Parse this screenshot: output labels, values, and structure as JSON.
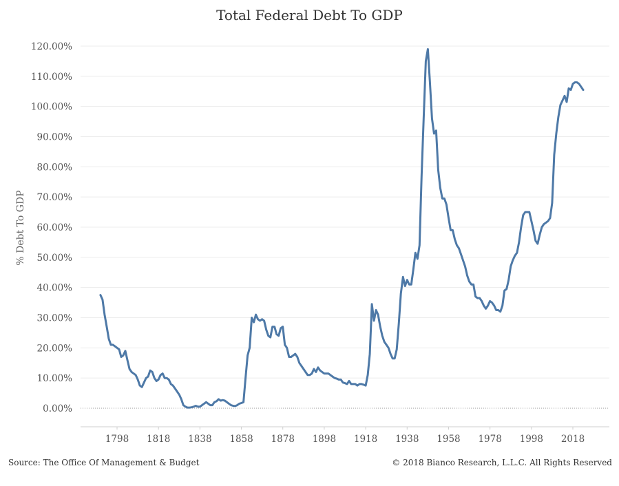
{
  "chart_data": {
    "type": "line",
    "title": "Total Federal Debt To GDP",
    "xlabel": "",
    "ylabel": "% Debt To GDP",
    "ylim": [
      0,
      125
    ],
    "xlim": [
      1783,
      2032
    ],
    "x_ticks": [
      "1798",
      "1818",
      "1838",
      "1858",
      "1878",
      "1898",
      "1918",
      "1938",
      "1958",
      "1978",
      "1998",
      "2018"
    ],
    "y_ticks": [
      "0.00%",
      "10.00%",
      "20.00%",
      "30.00%",
      "40.00%",
      "50.00%",
      "60.00%",
      "70.00%",
      "80.00%",
      "90.00%",
      "100.00%",
      "110.00%",
      "120.00%"
    ],
    "grid": "horizontal",
    "line_color": "#4e79a7",
    "series": [
      {
        "x": [
          1790,
          1791,
          1792,
          1793,
          1794,
          1795,
          1796,
          1797,
          1798,
          1799,
          1800,
          1801,
          1802,
          1803,
          1804,
          1805,
          1806,
          1807,
          1808,
          1809,
          1810,
          1811,
          1812,
          1813,
          1814,
          1815,
          1816,
          1817,
          1818,
          1819,
          1820,
          1821,
          1822,
          1823,
          1824,
          1825,
          1826,
          1827,
          1828,
          1829,
          1830,
          1831,
          1832,
          1833,
          1834,
          1835,
          1836,
          1837,
          1838,
          1839,
          1840,
          1841,
          1842,
          1843,
          1844,
          1845,
          1846,
          1847,
          1848,
          1849,
          1850,
          1851,
          1852,
          1853,
          1854,
          1855,
          1856,
          1857,
          1858,
          1859,
          1860,
          1861,
          1862,
          1863,
          1864,
          1865,
          1866,
          1867,
          1868,
          1869,
          1870,
          1871,
          1872,
          1873,
          1874,
          1875,
          1876,
          1877,
          1878,
          1879,
          1880,
          1881,
          1882,
          1883,
          1884,
          1885,
          1886,
          1887,
          1888,
          1889,
          1890,
          1891,
          1892,
          1893,
          1894,
          1895,
          1896,
          1897,
          1898,
          1899,
          1900,
          1901,
          1902,
          1903,
          1904,
          1905,
          1906,
          1907,
          1908,
          1909,
          1910,
          1911,
          1912,
          1913,
          1914,
          1915,
          1916,
          1917,
          1918,
          1919,
          1920,
          1921,
          1922,
          1923,
          1924,
          1925,
          1926,
          1927,
          1928,
          1929,
          1930,
          1931,
          1932,
          1933,
          1934,
          1935,
          1936,
          1937,
          1938,
          1939,
          1940,
          1941,
          1942,
          1943,
          1944,
          1945,
          1946,
          1947,
          1948,
          1949,
          1950,
          1951,
          1952,
          1953,
          1954,
          1955,
          1956,
          1957,
          1958,
          1959,
          1960,
          1961,
          1962,
          1963,
          1964,
          1965,
          1966,
          1967,
          1968,
          1969,
          1970,
          1971,
          1972,
          1973,
          1974,
          1975,
          1976,
          1977,
          1978,
          1979,
          1980,
          1981,
          1982,
          1983,
          1984,
          1985,
          1986,
          1987,
          1988,
          1989,
          1990,
          1991,
          1992,
          1993,
          1994,
          1995,
          1996,
          1997,
          1998,
          1999,
          2000,
          2001,
          2002,
          2003,
          2004,
          2005,
          2006,
          2007,
          2008,
          2009,
          2010,
          2011,
          2012,
          2013,
          2014,
          2015,
          2016,
          2017,
          2018,
          2019,
          2020,
          2021,
          2022,
          2023
        ],
        "y": [
          37.5,
          36,
          31,
          27,
          23,
          21,
          21,
          20.5,
          20,
          19.5,
          17,
          17.5,
          19,
          16,
          13,
          12,
          11.5,
          11,
          9.5,
          7.5,
          7,
          8.5,
          10,
          10.5,
          12.5,
          12,
          10,
          9,
          9.5,
          11,
          11.5,
          10,
          10,
          9.5,
          8,
          7.5,
          6.5,
          5.5,
          4.5,
          3,
          1,
          0.5,
          0.2,
          0.2,
          0.3,
          0.5,
          0.8,
          0.5,
          0.5,
          1,
          1.5,
          2,
          1.5,
          1,
          1,
          2,
          2.3,
          3,
          2.5,
          2.7,
          2.5,
          2,
          1.5,
          1,
          0.8,
          0.7,
          1,
          1.5,
          1.7,
          2,
          10,
          17.5,
          20,
          30,
          28.5,
          31,
          29.5,
          29,
          29.5,
          29,
          26,
          24,
          23.5,
          27,
          27,
          24.5,
          24,
          26.5,
          27,
          21,
          20,
          17,
          17,
          17.5,
          18,
          17,
          15,
          14,
          13,
          12,
          11,
          11,
          11.5,
          13,
          12,
          13.5,
          12.5,
          12,
          11.5,
          11.5,
          11.5,
          11,
          10.5,
          10,
          9.8,
          9.5,
          9.5,
          8.5,
          8.3,
          8,
          9,
          8,
          8,
          8,
          7.5,
          8,
          8,
          7.8,
          7.5,
          11,
          18,
          34.5,
          29,
          32.5,
          31,
          27,
          24,
          22,
          21,
          20,
          18,
          16.5,
          16.5,
          19.5,
          28,
          38,
          43.5,
          40.5,
          42.5,
          41,
          41,
          46,
          51.5,
          49.5,
          54,
          77,
          96,
          115,
          119,
          108,
          96,
          91,
          92,
          79,
          73,
          69.5,
          69.5,
          67.5,
          63,
          59,
          59,
          56,
          54,
          53,
          51,
          49,
          47,
          44,
          42,
          41,
          41,
          37,
          36.5,
          36.5,
          35.5,
          34,
          33,
          34,
          35.5,
          35,
          34,
          32.5,
          32.5,
          32,
          34,
          39,
          39.5,
          42.5,
          47,
          49,
          50.5,
          51.5,
          55,
          60,
          64,
          65,
          65,
          65,
          62,
          59,
          55.5,
          54.5,
          57.5,
          60,
          61,
          61.5,
          62,
          63,
          68,
          84,
          91,
          96.5,
          100.5,
          102,
          103.5,
          101.5,
          106,
          105.5,
          107.5,
          108,
          108,
          107.5,
          106.5,
          105.5
        ]
      }
    ]
  },
  "footer": {
    "source": "Source: The Office Of Management & Budget",
    "copyright": "© 2018 Bianco Research, L.L.C. All Rights Reserved"
  }
}
